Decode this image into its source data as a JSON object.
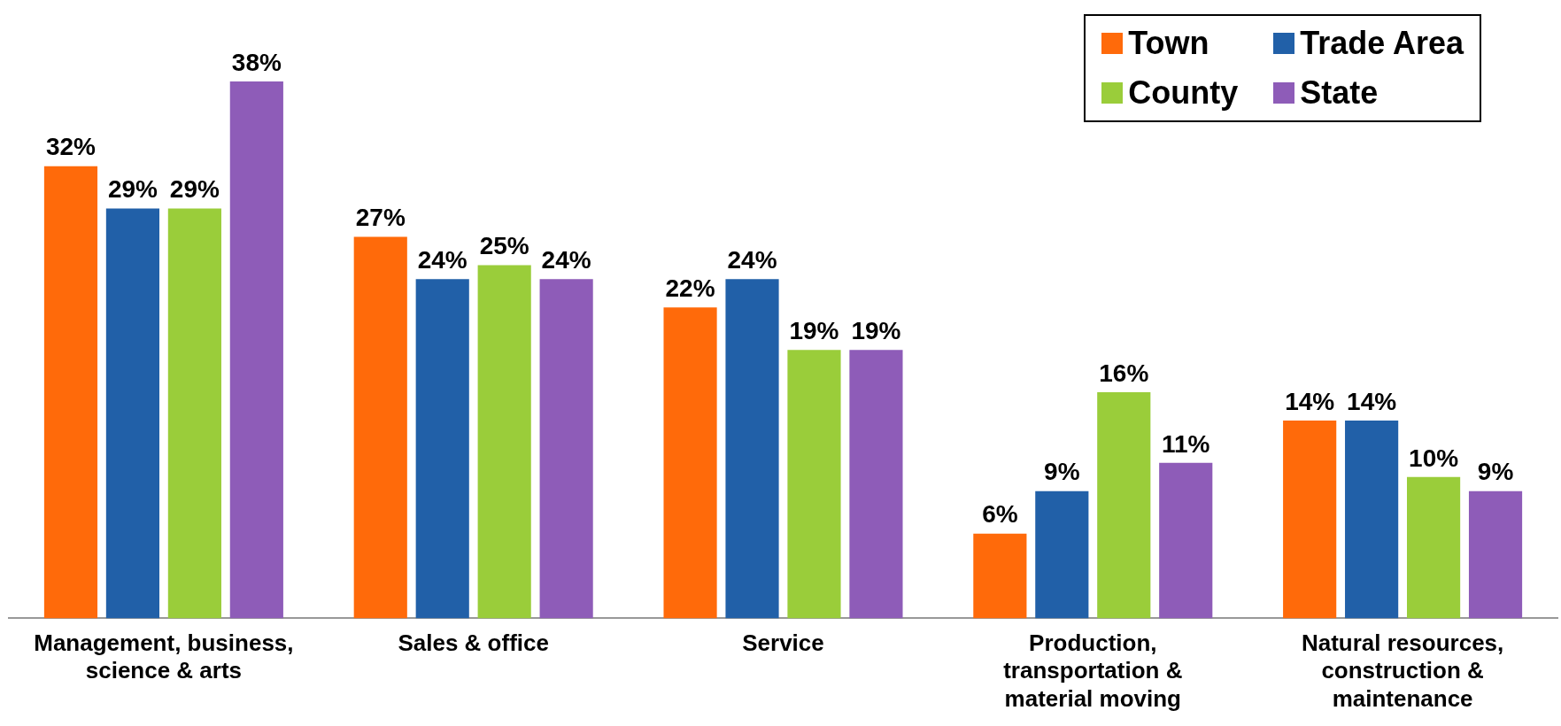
{
  "chart_data": {
    "type": "bar",
    "categories": [
      "Management, business, science & arts",
      "Sales & office",
      "Service",
      "Production, transportation & material moving",
      "Natural resources, construction & maintenance"
    ],
    "series": [
      {
        "name": "Town",
        "color": "#ff6a0a",
        "values": [
          32,
          27,
          22,
          6,
          14
        ],
        "value_labels": [
          "32%",
          "27%",
          "22%",
          "6%",
          "14%"
        ]
      },
      {
        "name": "Trade Area",
        "color": "#2160a8",
        "values": [
          29,
          24,
          24,
          9,
          14
        ],
        "value_labels": [
          "29%",
          "24%",
          "24%",
          "9%",
          "14%"
        ]
      },
      {
        "name": "County",
        "color": "#9acd3a",
        "values": [
          29,
          25,
          19,
          16,
          10
        ],
        "value_labels": [
          "29%",
          "25%",
          "19%",
          "16%",
          "10%"
        ]
      },
      {
        "name": "State",
        "color": "#8e5cb8",
        "values": [
          38,
          24,
          19,
          11,
          9
        ],
        "value_labels": [
          "38%",
          "24%",
          "19%",
          "11%",
          "9%"
        ]
      }
    ],
    "legend": "top right",
    "grid": false,
    "tick_labels": "x"
  }
}
